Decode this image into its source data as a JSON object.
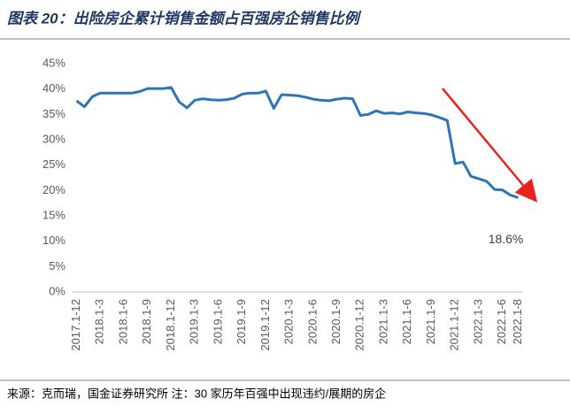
{
  "chart_data": {
    "type": "line",
    "title": "图表 20：出险房企累计销售金额占百强房企销售比例",
    "source": "来源：克而瑞，国金证券研究所 注：30 家历年百强中出现违约/展期的房企",
    "categories": [
      "2017.1-12",
      null,
      null,
      "2018.1-3",
      null,
      null,
      "2018.1-6",
      null,
      null,
      "2018.1-9",
      null,
      null,
      "2018.1-12",
      null,
      null,
      "2019.1-3",
      null,
      null,
      "2019.1-6",
      null,
      null,
      "2019.1-9",
      null,
      null,
      "2019.1-12",
      null,
      null,
      "2020.1-3",
      null,
      null,
      "2020.1-6",
      null,
      null,
      "2020.1-9",
      null,
      null,
      "2020.1-12",
      null,
      null,
      "2021.1-3",
      null,
      null,
      "2021.1-6",
      null,
      null,
      "2021.1-9",
      null,
      null,
      "2021.1-12",
      null,
      null,
      "2022.1-3",
      null,
      null,
      "2022.1-6",
      null,
      "2022.1-8"
    ],
    "values": [
      37.7,
      36.5,
      38.5,
      39.2,
      39.2,
      39.2,
      39.2,
      39.2,
      39.5,
      40.1,
      40.1,
      40.1,
      40.3,
      37.5,
      36.3,
      37.8,
      38.1,
      37.9,
      37.8,
      37.9,
      38.2,
      39.0,
      39.2,
      39.2,
      39.6,
      36.2,
      38.9,
      38.8,
      38.7,
      38.4,
      38.0,
      37.8,
      37.7,
      38.0,
      38.2,
      38.1,
      34.8,
      35.0,
      35.7,
      35.2,
      35.3,
      35.1,
      35.5,
      35.3,
      35.2,
      34.9,
      34.4,
      33.8,
      25.3,
      25.6,
      22.8,
      22.3,
      21.8,
      20.2,
      20.1,
      19.1,
      18.6
    ],
    "value_labels": [
      null,
      null,
      null,
      null,
      null,
      null,
      null,
      null,
      null,
      null,
      null,
      null,
      null,
      null,
      null,
      null,
      null,
      null,
      null,
      null,
      null,
      null,
      null,
      null,
      null,
      null,
      null,
      null,
      null,
      null,
      null,
      null,
      null,
      null,
      null,
      null,
      null,
      null,
      null,
      null,
      null,
      null,
      null,
      null,
      null,
      null,
      null,
      null,
      null,
      null,
      null,
      null,
      null,
      null,
      null,
      null,
      "18.6%"
    ],
    "color": "#2e75b6",
    "ylim": [
      0,
      45
    ],
    "yticks": [
      {
        "value": 0,
        "label": "0%"
      },
      {
        "value": 5,
        "label": "5%"
      },
      {
        "value": 10,
        "label": "10%"
      },
      {
        "value": 15,
        "label": "15%"
      },
      {
        "value": 20,
        "label": "20%"
      },
      {
        "value": 25,
        "label": "25%"
      },
      {
        "value": 30,
        "label": "30%"
      },
      {
        "value": 35,
        "label": "35%"
      },
      {
        "value": 40,
        "label": "40%"
      },
      {
        "value": 45,
        "label": "45%"
      }
    ],
    "grid": false
  }
}
